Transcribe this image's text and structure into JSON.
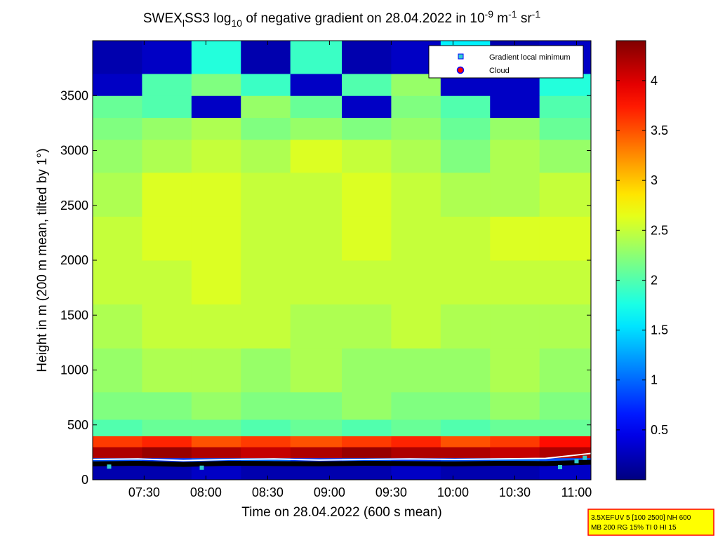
{
  "chart_data": {
    "type": "heatmap",
    "title_parts": [
      {
        "text": "SWEX",
        "shift": "none"
      },
      {
        "text": "l",
        "shift": "sub"
      },
      {
        "text": "SS3 log",
        "shift": "none"
      },
      {
        "text": "10",
        "shift": "sub"
      },
      {
        "text": " of negative gradient on 28.04.2022 in 10",
        "shift": "none"
      },
      {
        "text": "-9",
        "shift": "sup"
      },
      {
        "text": " m",
        "shift": "none"
      },
      {
        "text": "-1",
        "shift": "sup"
      },
      {
        "text": " sr",
        "shift": "none"
      },
      {
        "text": "-1",
        "shift": "sup"
      }
    ],
    "x_label": "Time on 28.04.2022 (600 s mean)",
    "y_label": "Height in m (200 m mean, tilted by 1°)",
    "xlim": [
      425,
      667
    ],
    "ylim": [
      0,
      4000
    ],
    "xticks": [
      {
        "value": 450,
        "label": "07:30"
      },
      {
        "value": 480,
        "label": "08:00"
      },
      {
        "value": 510,
        "label": "08:30"
      },
      {
        "value": 540,
        "label": "09:00"
      },
      {
        "value": 570,
        "label": "09:30"
      },
      {
        "value": 600,
        "label": "10:00"
      },
      {
        "value": 630,
        "label": "10:30"
      },
      {
        "value": 660,
        "label": "11:00"
      }
    ],
    "yticks": [
      0,
      500,
      1000,
      1500,
      2000,
      2500,
      3000,
      3500
    ],
    "colormap": "jet",
    "clim": [
      0,
      4.4
    ],
    "cticks": [
      0.5,
      1,
      1.5,
      2,
      2.5,
      3,
      3.5,
      4
    ],
    "x_edges": [
      425,
      449,
      473,
      497,
      521,
      546,
      570,
      594,
      618,
      642,
      667
    ],
    "y_edges": [
      0,
      150,
      200,
      300,
      400,
      550,
      800,
      1200,
      1600,
      2000,
      2400,
      2800,
      3100,
      3300,
      3500,
      3700,
      4000
    ],
    "z": [
      [
        0.2,
        0.2,
        0.3,
        0.2,
        0.2,
        0.2,
        0.3,
        0.2,
        0.2,
        0.3
      ],
      [
        0.9,
        0.8,
        0.9,
        1.0,
        0.8,
        0.9,
        0.8,
        0.9,
        1.0,
        0.9
      ],
      [
        4.2,
        4.3,
        4.2,
        4.1,
        4.2,
        4.3,
        4.2,
        4.2,
        4.1,
        4.2
      ],
      [
        3.6,
        3.7,
        3.5,
        3.6,
        3.5,
        3.6,
        3.7,
        3.5,
        3.6,
        3.8
      ],
      [
        2.0,
        2.1,
        2.1,
        2.0,
        2.1,
        2.0,
        2.1,
        2.0,
        2.1,
        2.1
      ],
      [
        2.2,
        2.2,
        2.3,
        2.2,
        2.2,
        2.3,
        2.2,
        2.2,
        2.3,
        2.2
      ],
      [
        2.3,
        2.4,
        2.4,
        2.3,
        2.4,
        2.3,
        2.3,
        2.3,
        2.4,
        2.3
      ],
      [
        2.4,
        2.5,
        2.5,
        2.5,
        2.4,
        2.4,
        2.5,
        2.4,
        2.4,
        2.4
      ],
      [
        2.5,
        2.5,
        2.6,
        2.5,
        2.5,
        2.5,
        2.5,
        2.5,
        2.5,
        2.5
      ],
      [
        2.5,
        2.6,
        2.6,
        2.5,
        2.5,
        2.6,
        2.5,
        2.5,
        2.6,
        2.6
      ],
      [
        2.4,
        2.6,
        2.6,
        2.5,
        2.5,
        2.6,
        2.5,
        2.4,
        2.4,
        2.5
      ],
      [
        2.3,
        2.4,
        2.5,
        2.4,
        2.6,
        2.5,
        2.4,
        2.2,
        2.4,
        2.3
      ],
      [
        2.2,
        2.3,
        2.4,
        2.2,
        2.3,
        2.2,
        2.3,
        2.1,
        2.3,
        2.1
      ],
      [
        2.1,
        2.0,
        0.3,
        2.3,
        2.1,
        0.3,
        2.2,
        2.0,
        0.3,
        2.0
      ],
      [
        0.3,
        2.0,
        2.2,
        1.9,
        0.3,
        2.0,
        2.3,
        0.3,
        0.3,
        1.8
      ],
      [
        0.2,
        0.3,
        1.8,
        0.2,
        1.9,
        0.2,
        0.3,
        1.6,
        0.2,
        0.3
      ]
    ],
    "overlays": [
      {
        "color": "#000000",
        "width": 7,
        "x": [
          425,
          447,
          469,
          491,
          513,
          535,
          557,
          579,
          601,
          623,
          645,
          667
        ],
        "values": [
          145,
          150,
          140,
          150,
          148,
          145,
          150,
          148,
          145,
          150,
          148,
          160
        ]
      },
      {
        "color": "#ffffff",
        "width": 2,
        "x": [
          425,
          447,
          469,
          491,
          513,
          535,
          557,
          579,
          601,
          623,
          645,
          667
        ],
        "values": [
          185,
          190,
          175,
          185,
          190,
          180,
          185,
          190,
          185,
          190,
          195,
          240
        ]
      }
    ],
    "minima": {
      "color": "#33cccc",
      "x": [
        433,
        478,
        652,
        660,
        664
      ],
      "values": [
        120,
        110,
        115,
        170,
        200
      ]
    },
    "legend": [
      {
        "name": "Gradient local minimum",
        "marker": "square",
        "color": "#33cccc",
        "edge": "#0000ff"
      },
      {
        "name": "Cloud",
        "marker": "circle",
        "color": "#ff0000",
        "edge": "#0000ff"
      }
    ],
    "info_lines": [
      "3.5XEFUV 5 [100 2500] NH 600",
      "MB 200 RG 15% TI 0 HI 15"
    ]
  }
}
